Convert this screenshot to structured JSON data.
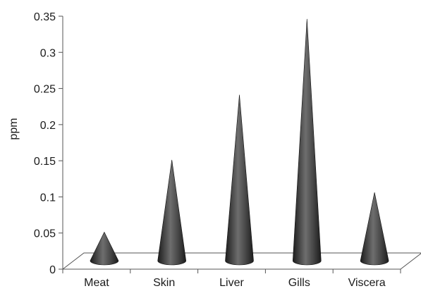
{
  "chart_data": {
    "type": "bar",
    "style": "3d-cone",
    "title": "",
    "xlabel": "",
    "ylabel": "ppm",
    "ylim": [
      0,
      0.35
    ],
    "yticks": [
      0,
      0.05,
      0.1,
      0.15,
      0.2,
      0.25,
      0.3,
      0.35
    ],
    "ytick_labels": [
      "0",
      "0.05",
      "0.1",
      "0.15",
      "0.2",
      "0.25",
      "0.3",
      "0.35"
    ],
    "categories": [
      "Meat",
      "Skin",
      "Liver",
      "Gills",
      "Viscera"
    ],
    "values": [
      0.04,
      0.14,
      0.23,
      0.335,
      0.095
    ],
    "grid": false,
    "legend": "none",
    "colors": {
      "cone_dark": "#1c1c1c",
      "cone_mid": "#4a4a4a",
      "cone_light": "#6e6e6e",
      "axis": "#555555",
      "floor": "#ffffff"
    }
  }
}
